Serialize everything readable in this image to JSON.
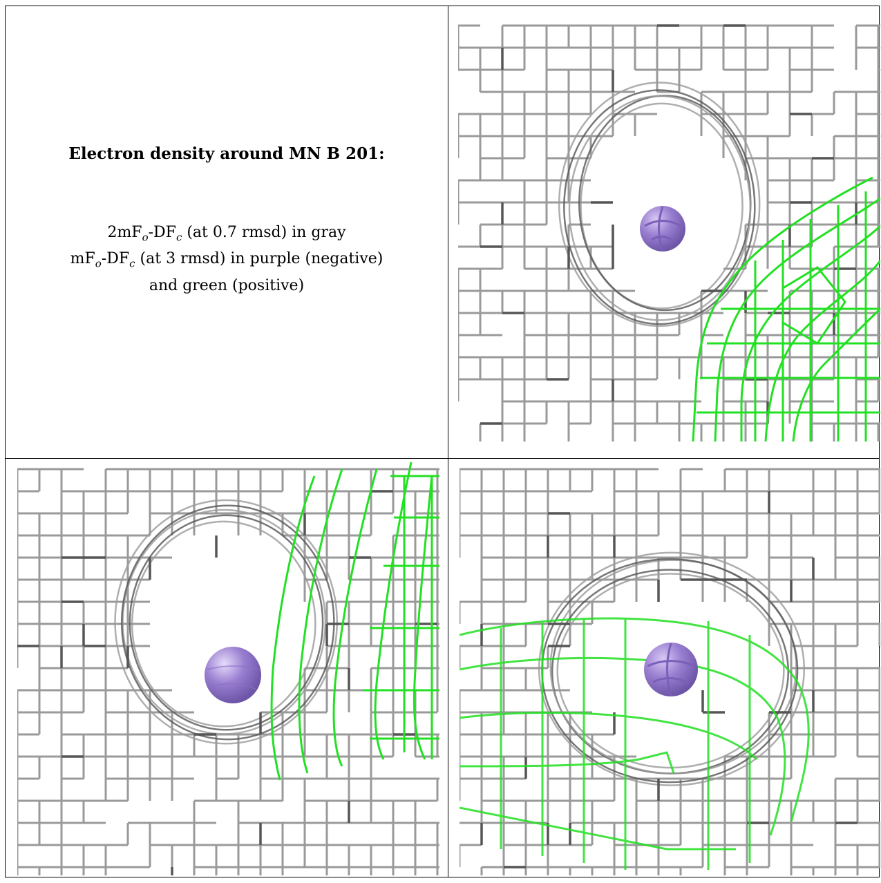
{
  "title": "Electron density around MN B 201:",
  "legend": {
    "line1_a": "2mF",
    "line1_sub1": "o",
    "line1_b": "-DF",
    "line1_sub2": "c",
    "line1_c": " (at 0.7 rmsd) in gray",
    "line2_a": "mF",
    "line2_sub1": "o",
    "line2_b": "-DF",
    "line2_sub2": "c",
    "line2_c": " (at 3 rmsd) in purple (negative)",
    "line3": "and green (positive)"
  },
  "colors": {
    "mesh_gray": "#9a9a9a",
    "mesh_dark": "#555555",
    "mesh_green": "#22e022",
    "atom": "#9a7fd1"
  }
}
